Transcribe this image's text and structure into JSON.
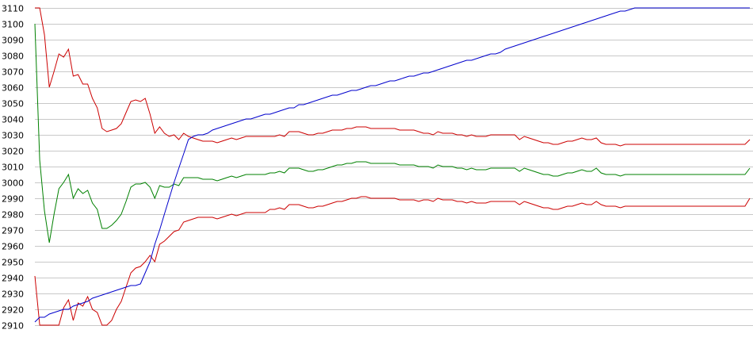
{
  "chart_data": {
    "type": "line",
    "title": "",
    "xlabel": "",
    "ylabel": "",
    "ylim": [
      2910,
      3110
    ],
    "y_ticks": [
      "2910",
      "2920",
      "2930",
      "2940",
      "2950",
      "2960",
      "2970",
      "2980",
      "2990",
      "3000",
      "3010",
      "3020",
      "3030",
      "3040",
      "3050",
      "3060",
      "3070",
      "3080",
      "3090",
      "3100",
      "3110"
    ],
    "grid": "horizontal",
    "legend": "none",
    "x": [
      0,
      1,
      2,
      3,
      4,
      5,
      6,
      7,
      8,
      9,
      10,
      11,
      12,
      13,
      14,
      15,
      16,
      17,
      18,
      19,
      20,
      21,
      22,
      23,
      24,
      25,
      26,
      27,
      28,
      29,
      30,
      31,
      32,
      33,
      34,
      35,
      36,
      37,
      38,
      39,
      40,
      41,
      42,
      43,
      44,
      45,
      46,
      47,
      48,
      49,
      50,
      51,
      52,
      53,
      54,
      55,
      56,
      57,
      58,
      59,
      60,
      61,
      62,
      63,
      64,
      65,
      66,
      67,
      68,
      69,
      70,
      71,
      72,
      73,
      74,
      75,
      76,
      77,
      78,
      79,
      80,
      81,
      82,
      83,
      84,
      85,
      86,
      87,
      88,
      89,
      90,
      91,
      92,
      93,
      94,
      95,
      96,
      97,
      98,
      99,
      100,
      101,
      102,
      103,
      104,
      105,
      106,
      107,
      108,
      109,
      110,
      111,
      112,
      113,
      114,
      115,
      116,
      117,
      118,
      119,
      120,
      121,
      122,
      123,
      124,
      125,
      126,
      127,
      128,
      129,
      130,
      131,
      132,
      133,
      134,
      135,
      136,
      137,
      138,
      139,
      140,
      141,
      142,
      143,
      144,
      145,
      146,
      147,
      148,
      149
    ],
    "series": [
      {
        "color": "#cc0000",
        "values": [
          3110,
          3110,
          3093,
          3060,
          3070,
          3081,
          3079,
          3084,
          3067,
          3068,
          3062,
          3062,
          3053,
          3047,
          3034,
          3032,
          3033,
          3034,
          3037,
          3044,
          3051,
          3052,
          3051,
          3053,
          3043,
          3031,
          3035,
          3031,
          3029,
          3030,
          3027,
          3031,
          3029,
          3028,
          3027,
          3026,
          3026,
          3026,
          3025,
          3026,
          3027,
          3028,
          3027,
          3028,
          3029,
          3029,
          3029,
          3029,
          3029,
          3029,
          3029,
          3030,
          3029,
          3032,
          3032,
          3032,
          3031,
          3030,
          3030,
          3031,
          3031,
          3032,
          3033,
          3033,
          3033,
          3034,
          3034,
          3035,
          3035,
          3035,
          3034,
          3034,
          3034,
          3034,
          3034,
          3034,
          3033,
          3033,
          3033,
          3033,
          3032,
          3031,
          3031,
          3030,
          3032,
          3031,
          3031,
          3031,
          3030,
          3030,
          3029,
          3030,
          3029,
          3029,
          3029,
          3030,
          3030,
          3030,
          3030,
          3030,
          3030,
          3027,
          3029,
          3028,
          3027,
          3026,
          3025,
          3025,
          3024,
          3024,
          3025,
          3026,
          3026,
          3027,
          3028,
          3027,
          3027,
          3028,
          3025,
          3024,
          3024,
          3024,
          3023,
          3024,
          3024,
          3024,
          3024,
          3024,
          3024,
          3024,
          3024,
          3024,
          3024,
          3024,
          3024,
          3024,
          3024,
          3024,
          3024,
          3024,
          3024,
          3024,
          3024,
          3024,
          3024,
          3024,
          3024,
          3024,
          3024,
          3027
        ]
      },
      {
        "color": "#008000",
        "values": [
          3100,
          3014,
          2982,
          2962,
          2980,
          2996,
          3000,
          3005,
          2990,
          2996,
          2993,
          2995,
          2987,
          2983,
          2971,
          2971,
          2973,
          2976,
          2980,
          2988,
          2997,
          2999,
          2999,
          3000,
          2997,
          2990,
          2998,
          2997,
          2997,
          2999,
          2998,
          3003,
          3003,
          3003,
          3003,
          3002,
          3002,
          3002,
          3001,
          3002,
          3003,
          3004,
          3003,
          3004,
          3005,
          3005,
          3005,
          3005,
          3005,
          3006,
          3006,
          3007,
          3006,
          3009,
          3009,
          3009,
          3008,
          3007,
          3007,
          3008,
          3008,
          3009,
          3010,
          3011,
          3011,
          3012,
          3012,
          3013,
          3013,
          3013,
          3012,
          3012,
          3012,
          3012,
          3012,
          3012,
          3011,
          3011,
          3011,
          3011,
          3010,
          3010,
          3010,
          3009,
          3011,
          3010,
          3010,
          3010,
          3009,
          3009,
          3008,
          3009,
          3008,
          3008,
          3008,
          3009,
          3009,
          3009,
          3009,
          3009,
          3009,
          3007,
          3009,
          3008,
          3007,
          3006,
          3005,
          3005,
          3004,
          3004,
          3005,
          3006,
          3006,
          3007,
          3008,
          3007,
          3007,
          3009,
          3006,
          3005,
          3005,
          3005,
          3004,
          3005,
          3005,
          3005,
          3005,
          3005,
          3005,
          3005,
          3005,
          3005,
          3005,
          3005,
          3005,
          3005,
          3005,
          3005,
          3005,
          3005,
          3005,
          3005,
          3005,
          3005,
          3005,
          3005,
          3005,
          3005,
          3005,
          3009
        ]
      },
      {
        "color": "#cc0000",
        "values": [
          2941,
          2910,
          2910,
          2910,
          2910,
          2910,
          2921,
          2926,
          2913,
          2924,
          2922,
          2928,
          2920,
          2918,
          2910,
          2910,
          2913,
          2920,
          2925,
          2934,
          2943,
          2946,
          2947,
          2950,
          2954,
          2950,
          2961,
          2963,
          2966,
          2969,
          2970,
          2975,
          2976,
          2977,
          2978,
          2978,
          2978,
          2978,
          2977,
          2978,
          2979,
          2980,
          2979,
          2980,
          2981,
          2981,
          2981,
          2981,
          2981,
          2983,
          2983,
          2984,
          2983,
          2986,
          2986,
          2986,
          2985,
          2984,
          2984,
          2985,
          2985,
          2986,
          2987,
          2988,
          2988,
          2989,
          2990,
          2990,
          2991,
          2991,
          2990,
          2990,
          2990,
          2990,
          2990,
          2990,
          2989,
          2989,
          2989,
          2989,
          2988,
          2989,
          2989,
          2988,
          2990,
          2989,
          2989,
          2989,
          2988,
          2988,
          2987,
          2988,
          2987,
          2987,
          2987,
          2988,
          2988,
          2988,
          2988,
          2988,
          2988,
          2986,
          2988,
          2987,
          2986,
          2985,
          2984,
          2984,
          2983,
          2983,
          2984,
          2985,
          2985,
          2986,
          2987,
          2986,
          2986,
          2988,
          2986,
          2985,
          2985,
          2985,
          2984,
          2985,
          2985,
          2985,
          2985,
          2985,
          2985,
          2985,
          2985,
          2985,
          2985,
          2985,
          2985,
          2985,
          2985,
          2985,
          2985,
          2985,
          2985,
          2985,
          2985,
          2985,
          2985,
          2985,
          2985,
          2985,
          2985,
          2990
        ]
      },
      {
        "color": "#0000cc",
        "values": [
          2912,
          2915,
          2915,
          2917,
          2918,
          2919,
          2920,
          2920,
          2922,
          2923,
          2924,
          2925,
          2927,
          2928,
          2929,
          2930,
          2931,
          2932,
          2933,
          2934,
          2935,
          2935,
          2936,
          2943,
          2950,
          2961,
          2970,
          2980,
          2990,
          3000,
          3009,
          3018,
          3027,
          3029,
          3030,
          3030,
          3031,
          3033,
          3034,
          3035,
          3036,
          3037,
          3038,
          3039,
          3040,
          3040,
          3041,
          3042,
          3043,
          3043,
          3044,
          3045,
          3046,
          3047,
          3047,
          3049,
          3049,
          3050,
          3051,
          3052,
          3053,
          3054,
          3055,
          3055,
          3056,
          3057,
          3058,
          3058,
          3059,
          3060,
          3061,
          3061,
          3062,
          3063,
          3064,
          3064,
          3065,
          3066,
          3067,
          3067,
          3068,
          3069,
          3069,
          3070,
          3071,
          3072,
          3073,
          3074,
          3075,
          3076,
          3077,
          3077,
          3078,
          3079,
          3080,
          3081,
          3081,
          3082,
          3084,
          3085,
          3086,
          3087,
          3088,
          3089,
          3090,
          3091,
          3092,
          3093,
          3094,
          3095,
          3096,
          3097,
          3098,
          3099,
          3100,
          3101,
          3102,
          3103,
          3104,
          3105,
          3106,
          3107,
          3108,
          3108,
          3109,
          3110,
          3110,
          3110,
          3110,
          3110,
          3110,
          3110,
          3110,
          3110,
          3110,
          3110,
          3110,
          3110,
          3110,
          3110,
          3110,
          3110,
          3110,
          3110,
          3110,
          3110,
          3110,
          3110,
          3110,
          3110
        ]
      }
    ]
  }
}
